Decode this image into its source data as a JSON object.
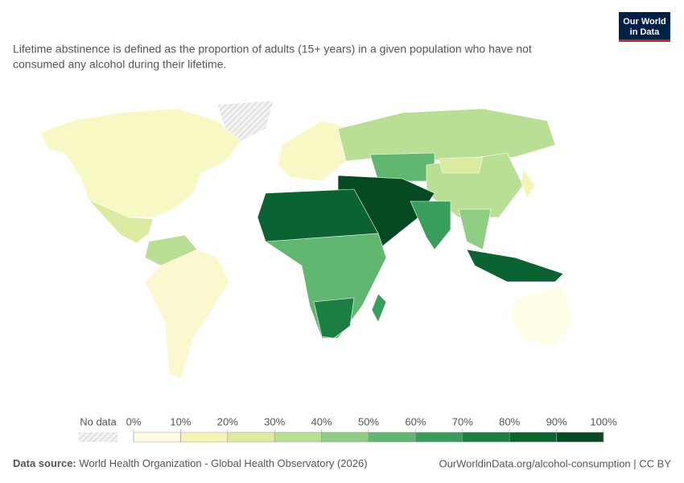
{
  "logo": {
    "line1": "Our World",
    "line2": "in Data"
  },
  "subtitle": [
    "Lifetime abstinence is defined as the proportion of adults (15+ years) in a given population who have not",
    "consumed any alcohol during their lifetime."
  ],
  "legend": {
    "no_data": "No data",
    "ticks": [
      {
        "value": 0,
        "label": "0%"
      },
      {
        "value": 10,
        "label": "10%"
      },
      {
        "value": 20,
        "label": "20%"
      },
      {
        "value": 30,
        "label": "30%"
      },
      {
        "value": 40,
        "label": "40%"
      },
      {
        "value": 50,
        "label": "50%"
      },
      {
        "value": 60,
        "label": "60%"
      },
      {
        "value": 70,
        "label": "70%"
      },
      {
        "value": 80,
        "label": "80%"
      },
      {
        "value": 90,
        "label": "90%"
      },
      {
        "value": 100,
        "label": "100%"
      }
    ],
    "colors": [
      "#fffde6",
      "#f4f5b4",
      "#dbeca1",
      "#b9df95",
      "#8fcd82",
      "#5fb770",
      "#389e5c",
      "#1b7f43",
      "#0b6331",
      "#064a24"
    ]
  },
  "footer": {
    "source_label": "Data source:",
    "source": "World Health Organization - Global Health Observatory (2026)",
    "url": "OurWorldinData.org/alcohol-consumption | CC BY"
  }
}
